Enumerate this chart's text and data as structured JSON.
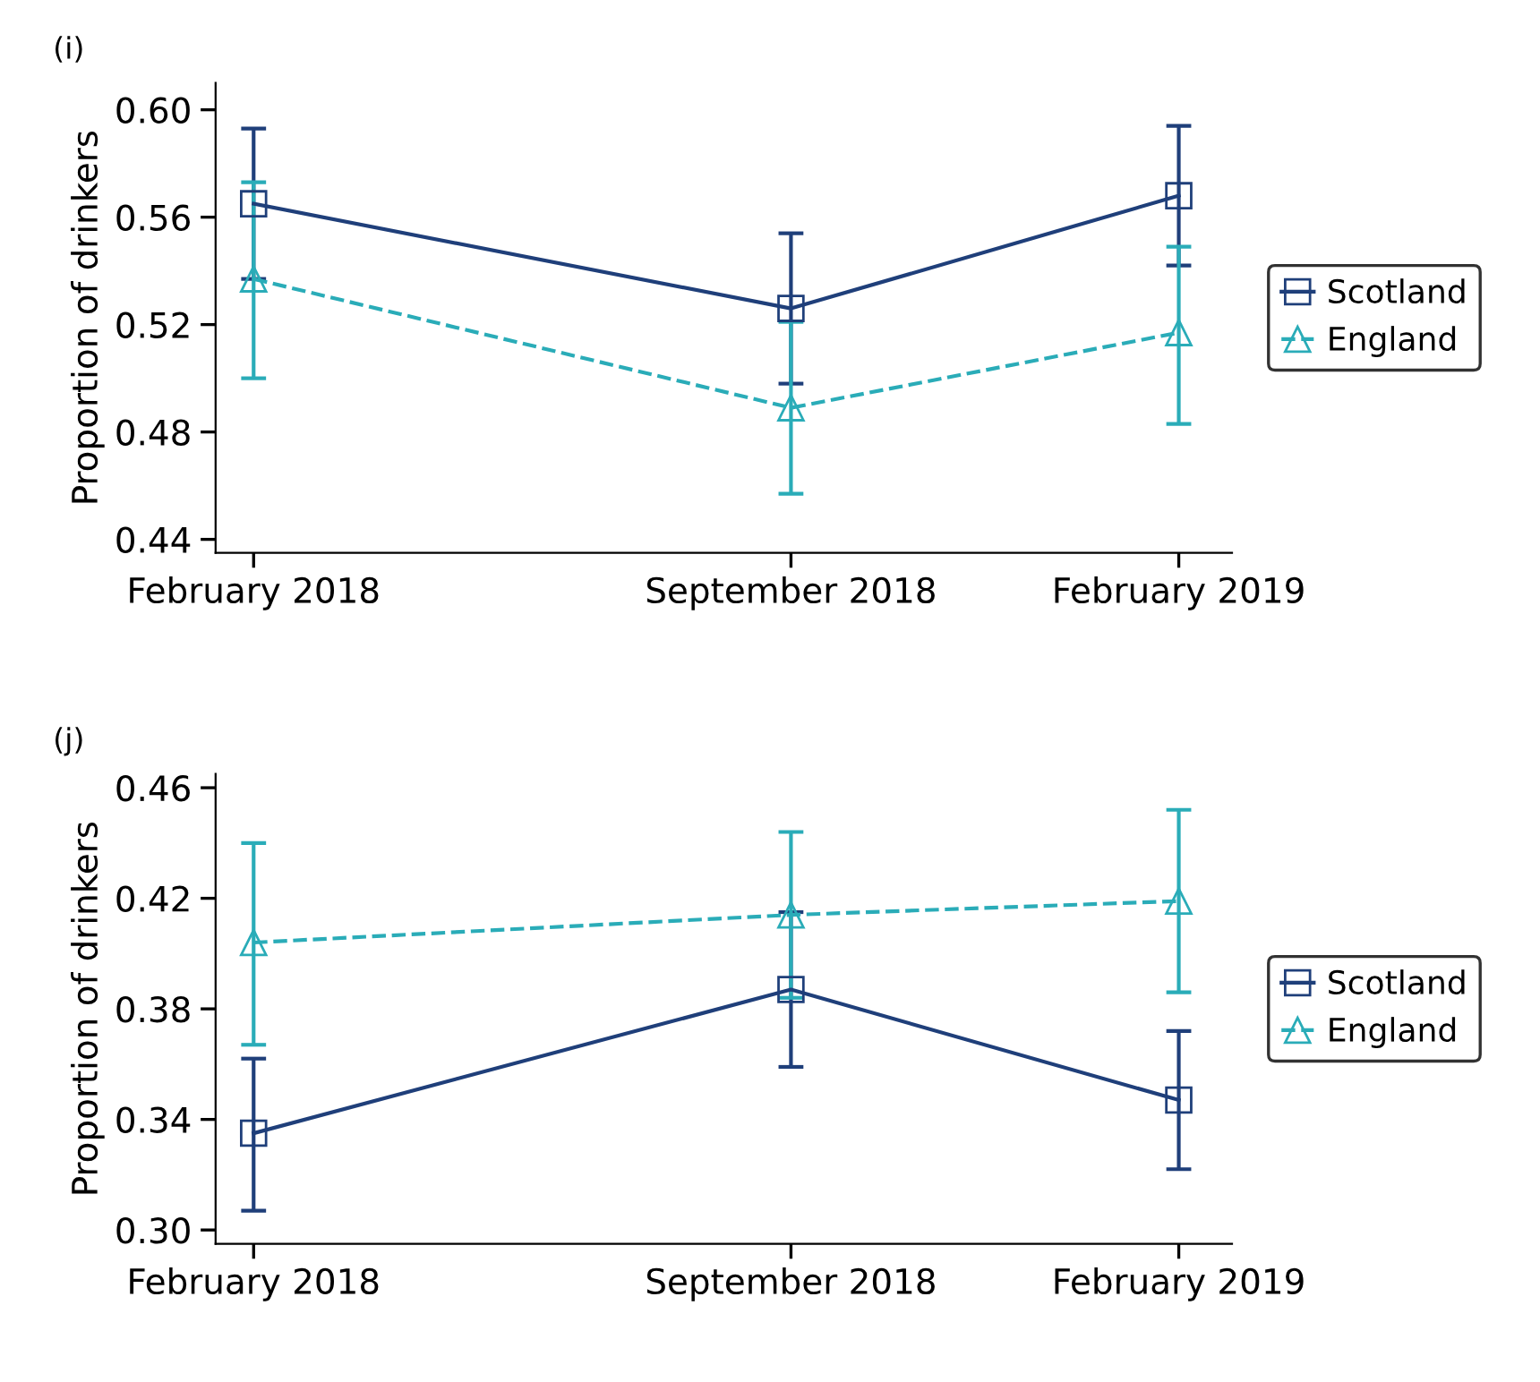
{
  "chart_data": [
    {
      "type": "line",
      "title": "(i)",
      "ylabel": "Proportion of drinkers",
      "x": [
        "2018-02",
        "2018-09",
        "2019-02"
      ],
      "xlim": [
        "2018-01-17",
        "2019-02-22"
      ],
      "xticks": [
        {
          "value": "2018-02",
          "label": "February 2018"
        },
        {
          "value": "2018-09",
          "label": "September 2018"
        },
        {
          "value": "2019-02",
          "label": "February 2019"
        }
      ],
      "ylim": [
        0.435,
        0.61
      ],
      "yticks": [
        0.44,
        0.48,
        0.52,
        0.56,
        {
          "value": 0.6,
          "label": "0.60"
        }
      ],
      "grid": false,
      "legend": "right",
      "series": [
        {
          "name": "Scotland",
          "color": "#1f3f7a",
          "marker": "square",
          "line_style": "solid",
          "values": [
            0.565,
            0.526,
            0.568
          ],
          "errors": [
            [
              0.537,
              0.593
            ],
            [
              0.498,
              0.554
            ],
            [
              0.542,
              0.594
            ]
          ]
        },
        {
          "name": "England",
          "color": "#2aacb8",
          "marker": "triangle",
          "line_style": "dashed",
          "values": [
            0.537,
            0.489,
            0.517
          ],
          "errors": [
            [
              0.5,
              0.573
            ],
            [
              0.457,
              0.521
            ],
            [
              0.483,
              0.549
            ]
          ]
        }
      ]
    },
    {
      "type": "line",
      "title": "(j)",
      "ylabel": "Proportion of drinkers",
      "x": [
        "2018-02",
        "2018-09",
        "2019-02"
      ],
      "xlim": [
        "2018-01-17",
        "2019-02-22"
      ],
      "xticks": [
        {
          "value": "2018-02",
          "label": "February 2018"
        },
        {
          "value": "2018-09",
          "label": "September 2018"
        },
        {
          "value": "2019-02",
          "label": "February 2019"
        }
      ],
      "ylim": [
        0.295,
        0.465
      ],
      "yticks": [
        {
          "value": 0.3,
          "label": "0.30"
        },
        0.34,
        0.38,
        0.42,
        0.46
      ],
      "grid": false,
      "legend": "right",
      "series": [
        {
          "name": "Scotland",
          "color": "#1f3f7a",
          "marker": "square",
          "line_style": "solid",
          "values": [
            0.335,
            0.387,
            0.347
          ],
          "errors": [
            [
              0.307,
              0.362
            ],
            [
              0.359,
              0.415
            ],
            [
              0.322,
              0.372
            ]
          ]
        },
        {
          "name": "England",
          "color": "#2aacb8",
          "marker": "triangle",
          "line_style": "dashed",
          "values": [
            0.404,
            0.414,
            0.419
          ],
          "errors": [
            [
              0.367,
              0.44
            ],
            [
              0.384,
              0.444
            ],
            [
              0.386,
              0.452
            ]
          ]
        }
      ]
    }
  ]
}
